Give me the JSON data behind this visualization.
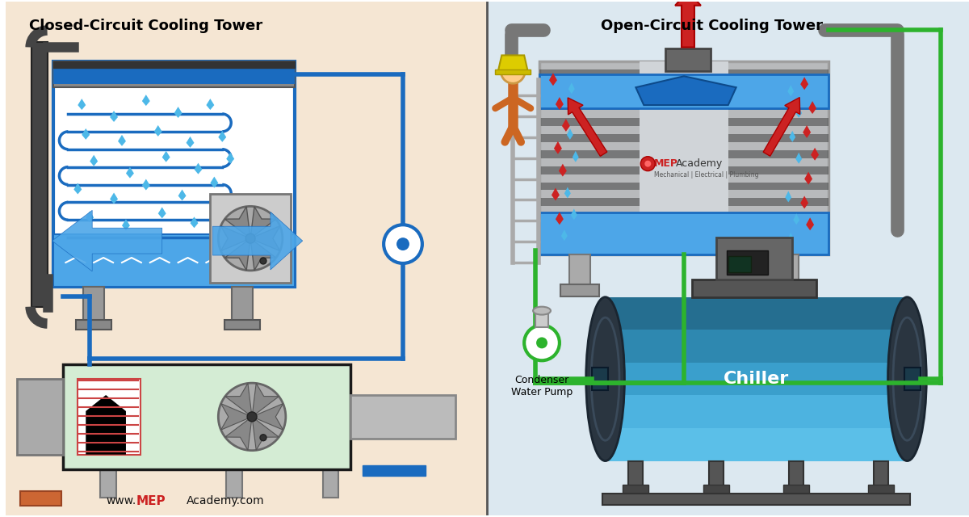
{
  "left_title": "Closed-Circuit Cooling Tower",
  "right_title": "Open-Circuit Cooling Tower",
  "left_bg": "#f5e6d3",
  "right_bg": "#dce8f0",
  "divider_color": "#555555",
  "blue_pipe": "#1a6bbf",
  "green_pipe": "#2db32d",
  "tower_body": "#ffffff",
  "tower_border": "#1a6bbf",
  "water_blue": "#4da6e8",
  "water_dark": "#1a6bbf",
  "coil_color": "#1a6bbf",
  "drop_color": "#4db8e8",
  "hot_drop": "#cc2222",
  "arrow_blue": "#4da6e8",
  "arrow_red": "#cc2222",
  "chiller_body": "#4db8e8",
  "chiller_dark": "#2a6080",
  "gray_metal": "#888888",
  "dark_gray": "#555555",
  "website_black": "#111111",
  "website_red": "#cc2222",
  "chiller_label": "Chiller",
  "pump_label": "Condenser\nWater Pump",
  "website_www": "www.",
  "website_mep": "MEP",
  "website_rest": "Academy.com"
}
